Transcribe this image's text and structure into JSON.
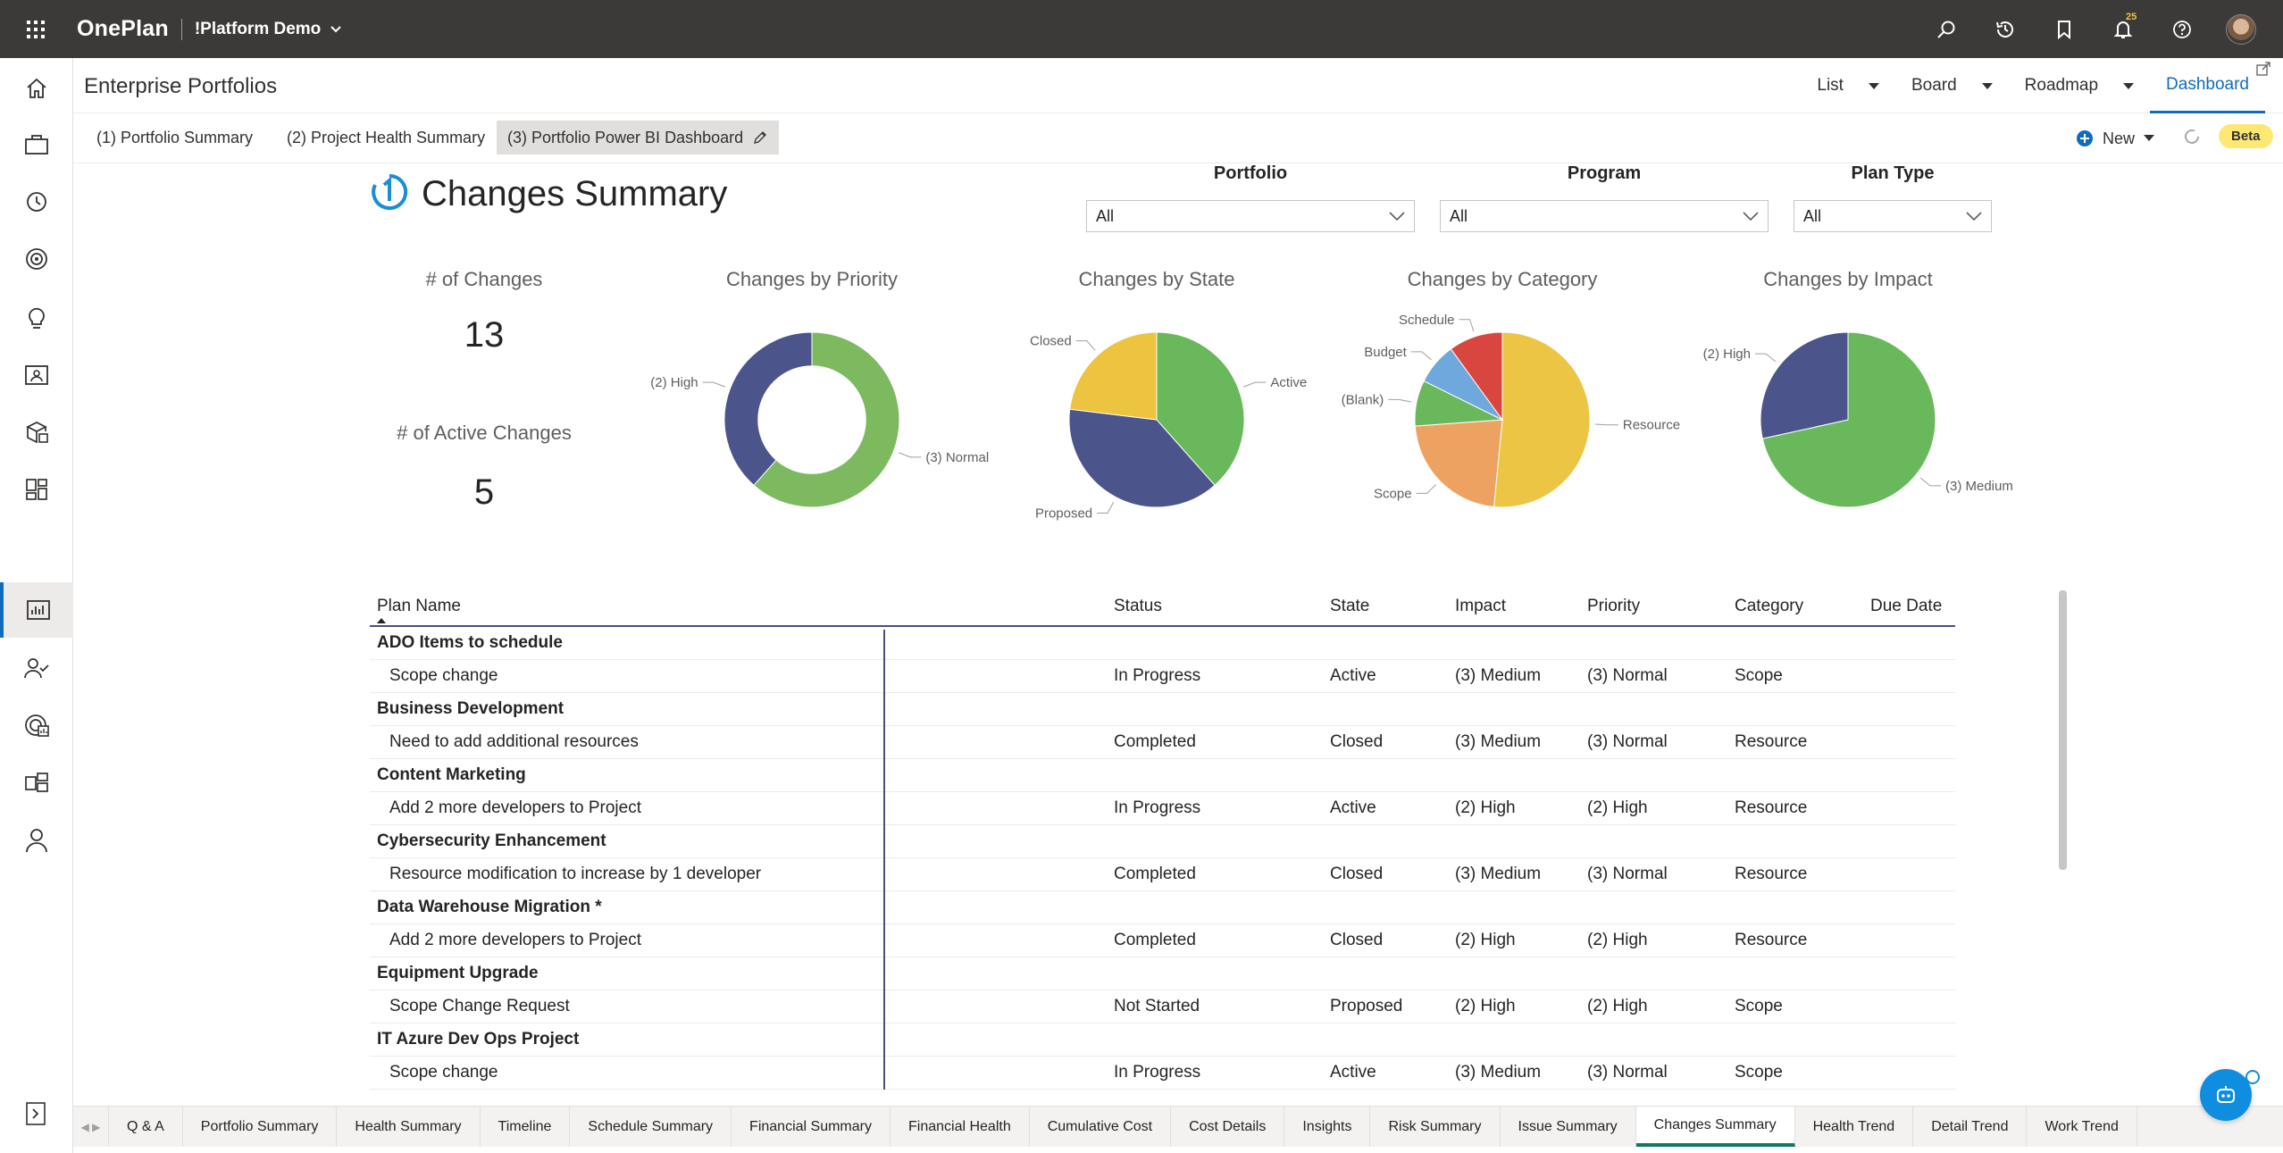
{
  "topbar": {
    "brand": "OnePlan",
    "workspace": "!Platform Demo",
    "notification_count": "25"
  },
  "header": {
    "title": "Enterprise Portfolios",
    "view_tabs": [
      {
        "label": "List"
      },
      {
        "label": "Board"
      },
      {
        "label": "Roadmap"
      },
      {
        "label": "Dashboard"
      }
    ]
  },
  "subtabs": [
    {
      "label": "(1) Portfolio Summary"
    },
    {
      "label": "(2) Project Health Summary"
    },
    {
      "label": "(3) Portfolio Power BI Dashboard"
    }
  ],
  "actions": {
    "new_label": "New",
    "beta_label": "Beta"
  },
  "dashboard": {
    "title": "Changes Summary",
    "slicers": [
      {
        "label": "Portfolio",
        "value": "All"
      },
      {
        "label": "Program",
        "value": "All"
      },
      {
        "label": "Plan Type",
        "value": "All"
      }
    ],
    "kpis": [
      {
        "label": "# of Changes",
        "value": "13"
      },
      {
        "label": "# of Active Changes",
        "value": "5"
      }
    ]
  },
  "chart_data": [
    {
      "type": "pie",
      "title": "Changes by Priority",
      "donut": true,
      "labels": [
        "(3) Normal",
        "(2) High"
      ],
      "values": [
        8,
        5
      ],
      "colors": [
        "#7dba5f",
        "#4b558c"
      ]
    },
    {
      "type": "pie",
      "title": "Changes by State",
      "labels": [
        "Active",
        "Proposed",
        "Closed"
      ],
      "values": [
        5,
        5,
        3
      ],
      "colors": [
        "#6ab85c",
        "#4b558c",
        "#ecc440"
      ]
    },
    {
      "type": "pie",
      "title": "Changes by Category",
      "labels": [
        "Resource",
        "Scope",
        "(Blank)",
        "Budget",
        "Schedule"
      ],
      "values": [
        6.7,
        2.9,
        1.1,
        1.0,
        1.3
      ],
      "colors": [
        "#edc544",
        "#eea262",
        "#6ab85c",
        "#6fa8dc",
        "#d9463f"
      ]
    },
    {
      "type": "pie",
      "title": "Changes by Impact",
      "labels": [
        "(3) Medium",
        "(2) High"
      ],
      "values": [
        9.3,
        3.7
      ],
      "colors": [
        "#6ab85c",
        "#4b558c"
      ]
    }
  ],
  "table": {
    "columns": [
      "Plan Name",
      "Status",
      "State",
      "Impact",
      "Priority",
      "Category",
      "Due Date"
    ],
    "rows": [
      {
        "kind": "group",
        "plan": "ADO Items to schedule"
      },
      {
        "kind": "item",
        "plan": "Scope change",
        "status": "In Progress",
        "state": "Active",
        "impact": "(3) Medium",
        "priority": "(3) Normal",
        "category": "Scope",
        "due": ""
      },
      {
        "kind": "group",
        "plan": "Business Development"
      },
      {
        "kind": "item",
        "plan": "Need to add additional resources",
        "status": "Completed",
        "state": "Closed",
        "impact": "(3) Medium",
        "priority": "(3) Normal",
        "category": "Resource",
        "due": ""
      },
      {
        "kind": "group",
        "plan": "Content Marketing"
      },
      {
        "kind": "item",
        "plan": "Add 2 more developers to Project",
        "status": "In Progress",
        "state": "Active",
        "impact": "(2) High",
        "priority": "(2) High",
        "category": "Resource",
        "due": ""
      },
      {
        "kind": "group",
        "plan": "Cybersecurity Enhancement"
      },
      {
        "kind": "item",
        "plan": "Resource modification to increase by 1 developer",
        "status": "Completed",
        "state": "Closed",
        "impact": "(3) Medium",
        "priority": "(3) Normal",
        "category": "Resource",
        "due": ""
      },
      {
        "kind": "group",
        "plan": "Data Warehouse Migration *"
      },
      {
        "kind": "item",
        "plan": "Add 2 more developers to Project",
        "status": "Completed",
        "state": "Closed",
        "impact": "(2) High",
        "priority": "(2) High",
        "category": "Resource",
        "due": ""
      },
      {
        "kind": "group",
        "plan": "Equipment Upgrade"
      },
      {
        "kind": "item",
        "plan": "Scope Change Request",
        "status": "Not Started",
        "state": "Proposed",
        "impact": "(2) High",
        "priority": "(2) High",
        "category": "Scope",
        "due": ""
      },
      {
        "kind": "group",
        "plan": "IT Azure Dev Ops Project"
      },
      {
        "kind": "item",
        "plan": "Scope change",
        "status": "In Progress",
        "state": "Active",
        "impact": "(3) Medium",
        "priority": "(3) Normal",
        "category": "Scope",
        "due": ""
      }
    ]
  },
  "bottom_tabs": [
    {
      "label": "Q & A"
    },
    {
      "label": "Portfolio Summary"
    },
    {
      "label": "Health Summary"
    },
    {
      "label": "Timeline"
    },
    {
      "label": "Schedule Summary"
    },
    {
      "label": "Financial Summary"
    },
    {
      "label": "Financial Health"
    },
    {
      "label": "Cumulative Cost"
    },
    {
      "label": "Cost Details"
    },
    {
      "label": "Insights"
    },
    {
      "label": "Risk Summary"
    },
    {
      "label": "Issue Summary"
    },
    {
      "label": "Changes Summary",
      "active": true
    },
    {
      "label": "Health Trend"
    },
    {
      "label": "Detail Trend"
    },
    {
      "label": "Work Trend"
    }
  ]
}
